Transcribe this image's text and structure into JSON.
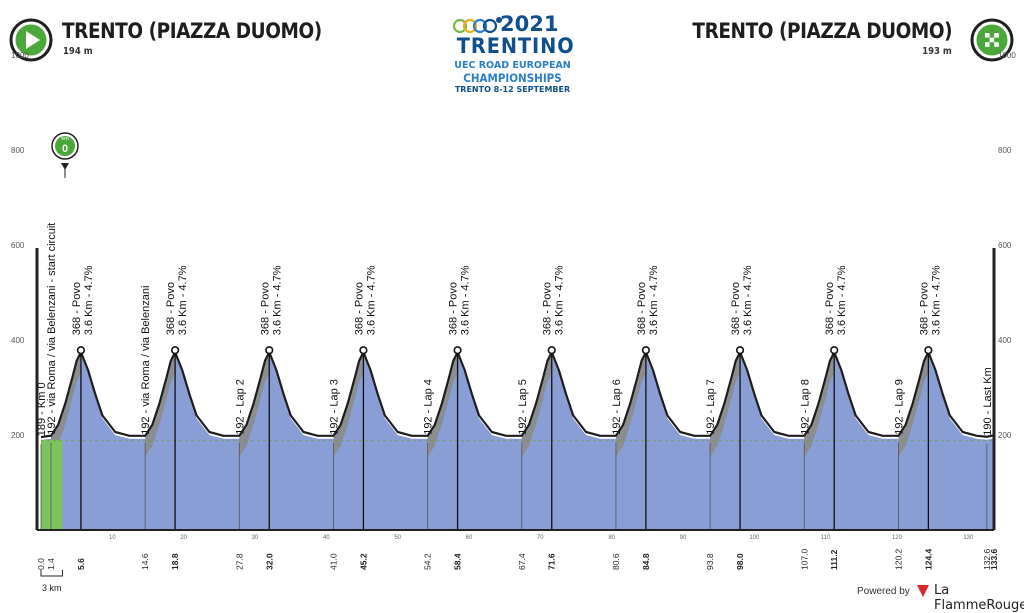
{
  "header": {
    "start_name": "TRENTO (PIAZZA DUOMO)",
    "start_altitude": "194 m",
    "finish_name": "TRENTO (PIAZZA DUOMO)",
    "finish_altitude": "193 m"
  },
  "logo": {
    "year": "2021",
    "name": "TRENTINO",
    "line1": "UEC ROAD EUROPEAN",
    "line2": "CHAMPIONSHIPS",
    "line3": "TRENTO 8-12 SEPTEMBER"
  },
  "km_marker": {
    "label": "km",
    "value": "0"
  },
  "scale_label": "3 km",
  "footer": {
    "powered_by": "Powered by",
    "brand": "La FlammeRouge"
  },
  "colors": {
    "profile_fill": "#8a9ed6",
    "climb_fill": "#8c8c8c",
    "start_segment": "#7dc35e",
    "start_icon": "#4aa838",
    "finish_icon": "#4aa838",
    "logo_blue": "#0f4f8c",
    "brand_red": "#d8262c"
  },
  "chart_data": {
    "type": "area",
    "title": "",
    "xlabel": "",
    "ylabel": "",
    "xlim": [
      0,
      133.6
    ],
    "ylim": [
      0,
      1200
    ],
    "y_ticks": [
      200,
      400,
      600,
      800,
      1000,
      1200
    ],
    "x_axis_ticks": [
      10,
      20,
      30,
      40,
      50,
      60,
      70,
      80,
      90,
      100,
      110,
      120,
      130
    ],
    "distance_labels": [
      {
        "km": 0.0,
        "label": "0.0",
        "bold": false
      },
      {
        "km": 1.4,
        "label": "1.4",
        "bold": false
      },
      {
        "km": 5.6,
        "label": "5.6",
        "bold": true
      },
      {
        "km": 14.6,
        "label": "14.6",
        "bold": false
      },
      {
        "km": 18.8,
        "label": "18.8",
        "bold": true
      },
      {
        "km": 27.8,
        "label": "27.8",
        "bold": false
      },
      {
        "km": 32.0,
        "label": "32.0",
        "bold": true
      },
      {
        "km": 41.0,
        "label": "41.0",
        "bold": false
      },
      {
        "km": 45.2,
        "label": "45.2",
        "bold": true
      },
      {
        "km": 54.2,
        "label": "54.2",
        "bold": false
      },
      {
        "km": 58.4,
        "label": "58.4",
        "bold": true
      },
      {
        "km": 67.4,
        "label": "67.4",
        "bold": false
      },
      {
        "km": 71.6,
        "label": "71.6",
        "bold": true
      },
      {
        "km": 80.6,
        "label": "80.6",
        "bold": false
      },
      {
        "km": 84.8,
        "label": "84.8",
        "bold": true
      },
      {
        "km": 93.8,
        "label": "93.8",
        "bold": false
      },
      {
        "km": 98.0,
        "label": "98.0",
        "bold": true
      },
      {
        "km": 107.0,
        "label": "107.0",
        "bold": false
      },
      {
        "km": 111.2,
        "label": "111.2",
        "bold": true
      },
      {
        "km": 120.2,
        "label": "120.2",
        "bold": false
      },
      {
        "km": 124.4,
        "label": "124.4",
        "bold": true
      },
      {
        "km": 132.6,
        "label": "132.6",
        "bold": false
      },
      {
        "km": 133.6,
        "label": "133.6",
        "bold": true
      }
    ],
    "annotations": [
      {
        "km": 0.0,
        "text": "189 - Km 0",
        "alt": 189,
        "climb": false
      },
      {
        "km": 1.4,
        "text": "192 - via Roma / via Belenzani - start circuit",
        "alt": 192,
        "climb": false
      },
      {
        "km": 5.6,
        "text": "368 - Povo",
        "sub": "3.6 Km - 4.7%",
        "alt": 368,
        "climb": true
      },
      {
        "km": 14.6,
        "text": "192 - via Roma / via Belenzani",
        "alt": 192,
        "climb": false
      },
      {
        "km": 18.8,
        "text": "368 - Povo",
        "sub": "3.6 Km - 4.7%",
        "alt": 368,
        "climb": true
      },
      {
        "km": 27.8,
        "text": "192 - Lap 2",
        "alt": 192,
        "climb": false
      },
      {
        "km": 32.0,
        "text": "368 - Povo",
        "sub": "3.6 Km - 4.7%",
        "alt": 368,
        "climb": true
      },
      {
        "km": 41.0,
        "text": "192 - Lap 3",
        "alt": 192,
        "climb": false
      },
      {
        "km": 45.2,
        "text": "368 - Povo",
        "sub": "3.6 Km - 4.7%",
        "alt": 368,
        "climb": true
      },
      {
        "km": 54.2,
        "text": "192 - Lap 4",
        "alt": 192,
        "climb": false
      },
      {
        "km": 58.4,
        "text": "368 - Povo",
        "sub": "3.6 Km - 4.7%",
        "alt": 368,
        "climb": true
      },
      {
        "km": 67.4,
        "text": "192 - Lap 5",
        "alt": 192,
        "climb": false
      },
      {
        "km": 71.6,
        "text": "368 - Povo",
        "sub": "3.6 Km - 4.7%",
        "alt": 368,
        "climb": true
      },
      {
        "km": 80.6,
        "text": "192 - Lap 6",
        "alt": 192,
        "climb": false
      },
      {
        "km": 84.8,
        "text": "368 - Povo",
        "sub": "3.6 Km - 4.7%",
        "alt": 368,
        "climb": true
      },
      {
        "km": 93.8,
        "text": "192 - Lap 7",
        "alt": 192,
        "climb": false
      },
      {
        "km": 98.0,
        "text": "368 - Povo",
        "sub": "3.6 Km - 4.7%",
        "alt": 368,
        "climb": true
      },
      {
        "km": 107.0,
        "text": "192 - Lap 8",
        "alt": 192,
        "climb": false
      },
      {
        "km": 111.2,
        "text": "368 - Povo",
        "sub": "3.6 Km - 4.7%",
        "alt": 368,
        "climb": true
      },
      {
        "km": 120.2,
        "text": "192 - Lap 9",
        "alt": 192,
        "climb": false
      },
      {
        "km": 124.4,
        "text": "368 - Povo",
        "sub": "3.6 Km - 4.7%",
        "alt": 368,
        "climb": true
      },
      {
        "km": 132.6,
        "text": "190 - Last Km",
        "alt": 190,
        "climb": false
      }
    ],
    "profile": {
      "km": [
        0,
        0.7,
        1.4,
        2.4,
        3.4,
        4.4,
        5.0,
        5.6,
        6.6,
        7.6,
        8.6,
        10.4,
        12.4,
        13.2,
        13.2,
        14.6,
        15.6,
        16.6,
        17.6,
        18.2,
        18.8,
        19.8,
        20.8,
        21.8,
        23.6,
        25.6,
        26.4,
        26.4,
        27.8,
        28.8,
        29.8,
        30.8,
        31.4,
        32.0,
        33.0,
        34.0,
        35.0,
        36.8,
        38.8,
        39.6,
        39.6,
        41.0,
        42.0,
        43.0,
        44.0,
        44.6,
        45.2,
        46.2,
        47.2,
        48.2,
        50.0,
        52.0,
        52.8,
        52.8,
        54.2,
        55.2,
        56.2,
        57.2,
        57.8,
        58.4,
        59.4,
        60.4,
        61.4,
        63.2,
        65.2,
        66.0,
        66.0,
        67.4,
        68.4,
        69.4,
        70.4,
        71.0,
        71.6,
        72.6,
        73.6,
        74.6,
        76.4,
        78.4,
        79.2,
        79.2,
        80.6,
        81.6,
        82.6,
        83.6,
        84.2,
        84.8,
        85.8,
        86.8,
        87.8,
        89.6,
        91.6,
        92.4,
        92.4,
        93.8,
        94.8,
        95.8,
        96.8,
        97.4,
        98.0,
        99.0,
        100.0,
        101.0,
        102.8,
        104.8,
        105.6,
        105.6,
        107.0,
        108.0,
        109.0,
        110.0,
        110.6,
        111.2,
        112.2,
        113.2,
        114.2,
        116.0,
        118.0,
        118.8,
        118.8,
        120.2,
        121.2,
        122.2,
        123.2,
        123.8,
        124.4,
        125.4,
        126.4,
        127.4,
        129.2,
        131.2,
        132.6,
        133.6
      ],
      "alt": [
        189,
        191,
        192,
        215,
        260,
        315,
        350,
        368,
        330,
        280,
        235,
        200,
        192,
        192,
        192,
        192,
        215,
        260,
        315,
        350,
        368,
        330,
        280,
        235,
        200,
        192,
        192,
        192,
        192,
        215,
        260,
        315,
        350,
        368,
        330,
        280,
        235,
        200,
        192,
        192,
        192,
        192,
        215,
        260,
        315,
        350,
        368,
        330,
        280,
        235,
        200,
        192,
        192,
        192,
        192,
        215,
        260,
        315,
        350,
        368,
        330,
        280,
        235,
        200,
        192,
        192,
        192,
        192,
        215,
        260,
        315,
        350,
        368,
        330,
        280,
        235,
        200,
        192,
        192,
        192,
        192,
        215,
        260,
        315,
        350,
        368,
        330,
        280,
        235,
        200,
        192,
        192,
        192,
        192,
        215,
        260,
        315,
        350,
        368,
        330,
        280,
        235,
        200,
        192,
        192,
        192,
        192,
        215,
        260,
        315,
        350,
        368,
        330,
        280,
        235,
        200,
        192,
        192,
        192,
        192,
        215,
        260,
        315,
        350,
        368,
        330,
        280,
        235,
        200,
        192,
        190,
        193
      ]
    }
  }
}
